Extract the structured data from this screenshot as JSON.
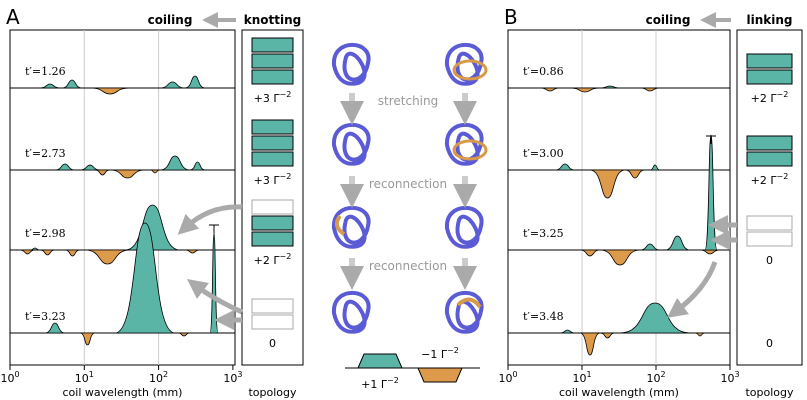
{
  "panels": [
    {
      "label": "A",
      "header_left": "coiling",
      "header_right": "knotting",
      "times": [
        "t′=1.26",
        "t′=2.73",
        "t′=2.98",
        "t′=3.23"
      ],
      "topology_labels": [
        {
          "base": "+3 Γ",
          "exp": "−2"
        },
        {
          "base": "+3 Γ",
          "exp": "−2"
        },
        {
          "base": "+2 Γ",
          "exp": "−2"
        },
        {
          "base": "0"
        }
      ],
      "xticks": [
        {
          "base": "10",
          "exp": "0"
        },
        {
          "base": "10",
          "exp": "1"
        },
        {
          "base": "10",
          "exp": "2"
        },
        {
          "base": "10",
          "exp": "3"
        }
      ],
      "xlabel": "coil wavelength (mm)",
      "topology_xlabel": "topology"
    },
    {
      "label": "B",
      "header_left": "coiling",
      "header_right": "linking",
      "times": [
        "t′=0.86",
        "t′=3.00",
        "t′=3.25",
        "t′=3.48"
      ],
      "topology_labels": [
        {
          "base": "+2 Γ",
          "exp": "−2"
        },
        {
          "base": "+2 Γ",
          "exp": "−2"
        },
        {
          "base": "0"
        },
        {
          "base": "0"
        }
      ],
      "xticks": [
        {
          "base": "10",
          "exp": "0"
        },
        {
          "base": "10",
          "exp": "1"
        },
        {
          "base": "10",
          "exp": "2"
        },
        {
          "base": "10",
          "exp": "3"
        }
      ],
      "xlabel": "coil wavelength (mm)",
      "topology_xlabel": "topology"
    }
  ],
  "middle": {
    "steps": [
      "stretching",
      "reconnection",
      "reconnection"
    ],
    "legend": [
      {
        "base": "+1 Γ",
        "exp": "−2"
      },
      {
        "base": "−1 Γ",
        "exp": "−2"
      }
    ]
  }
}
